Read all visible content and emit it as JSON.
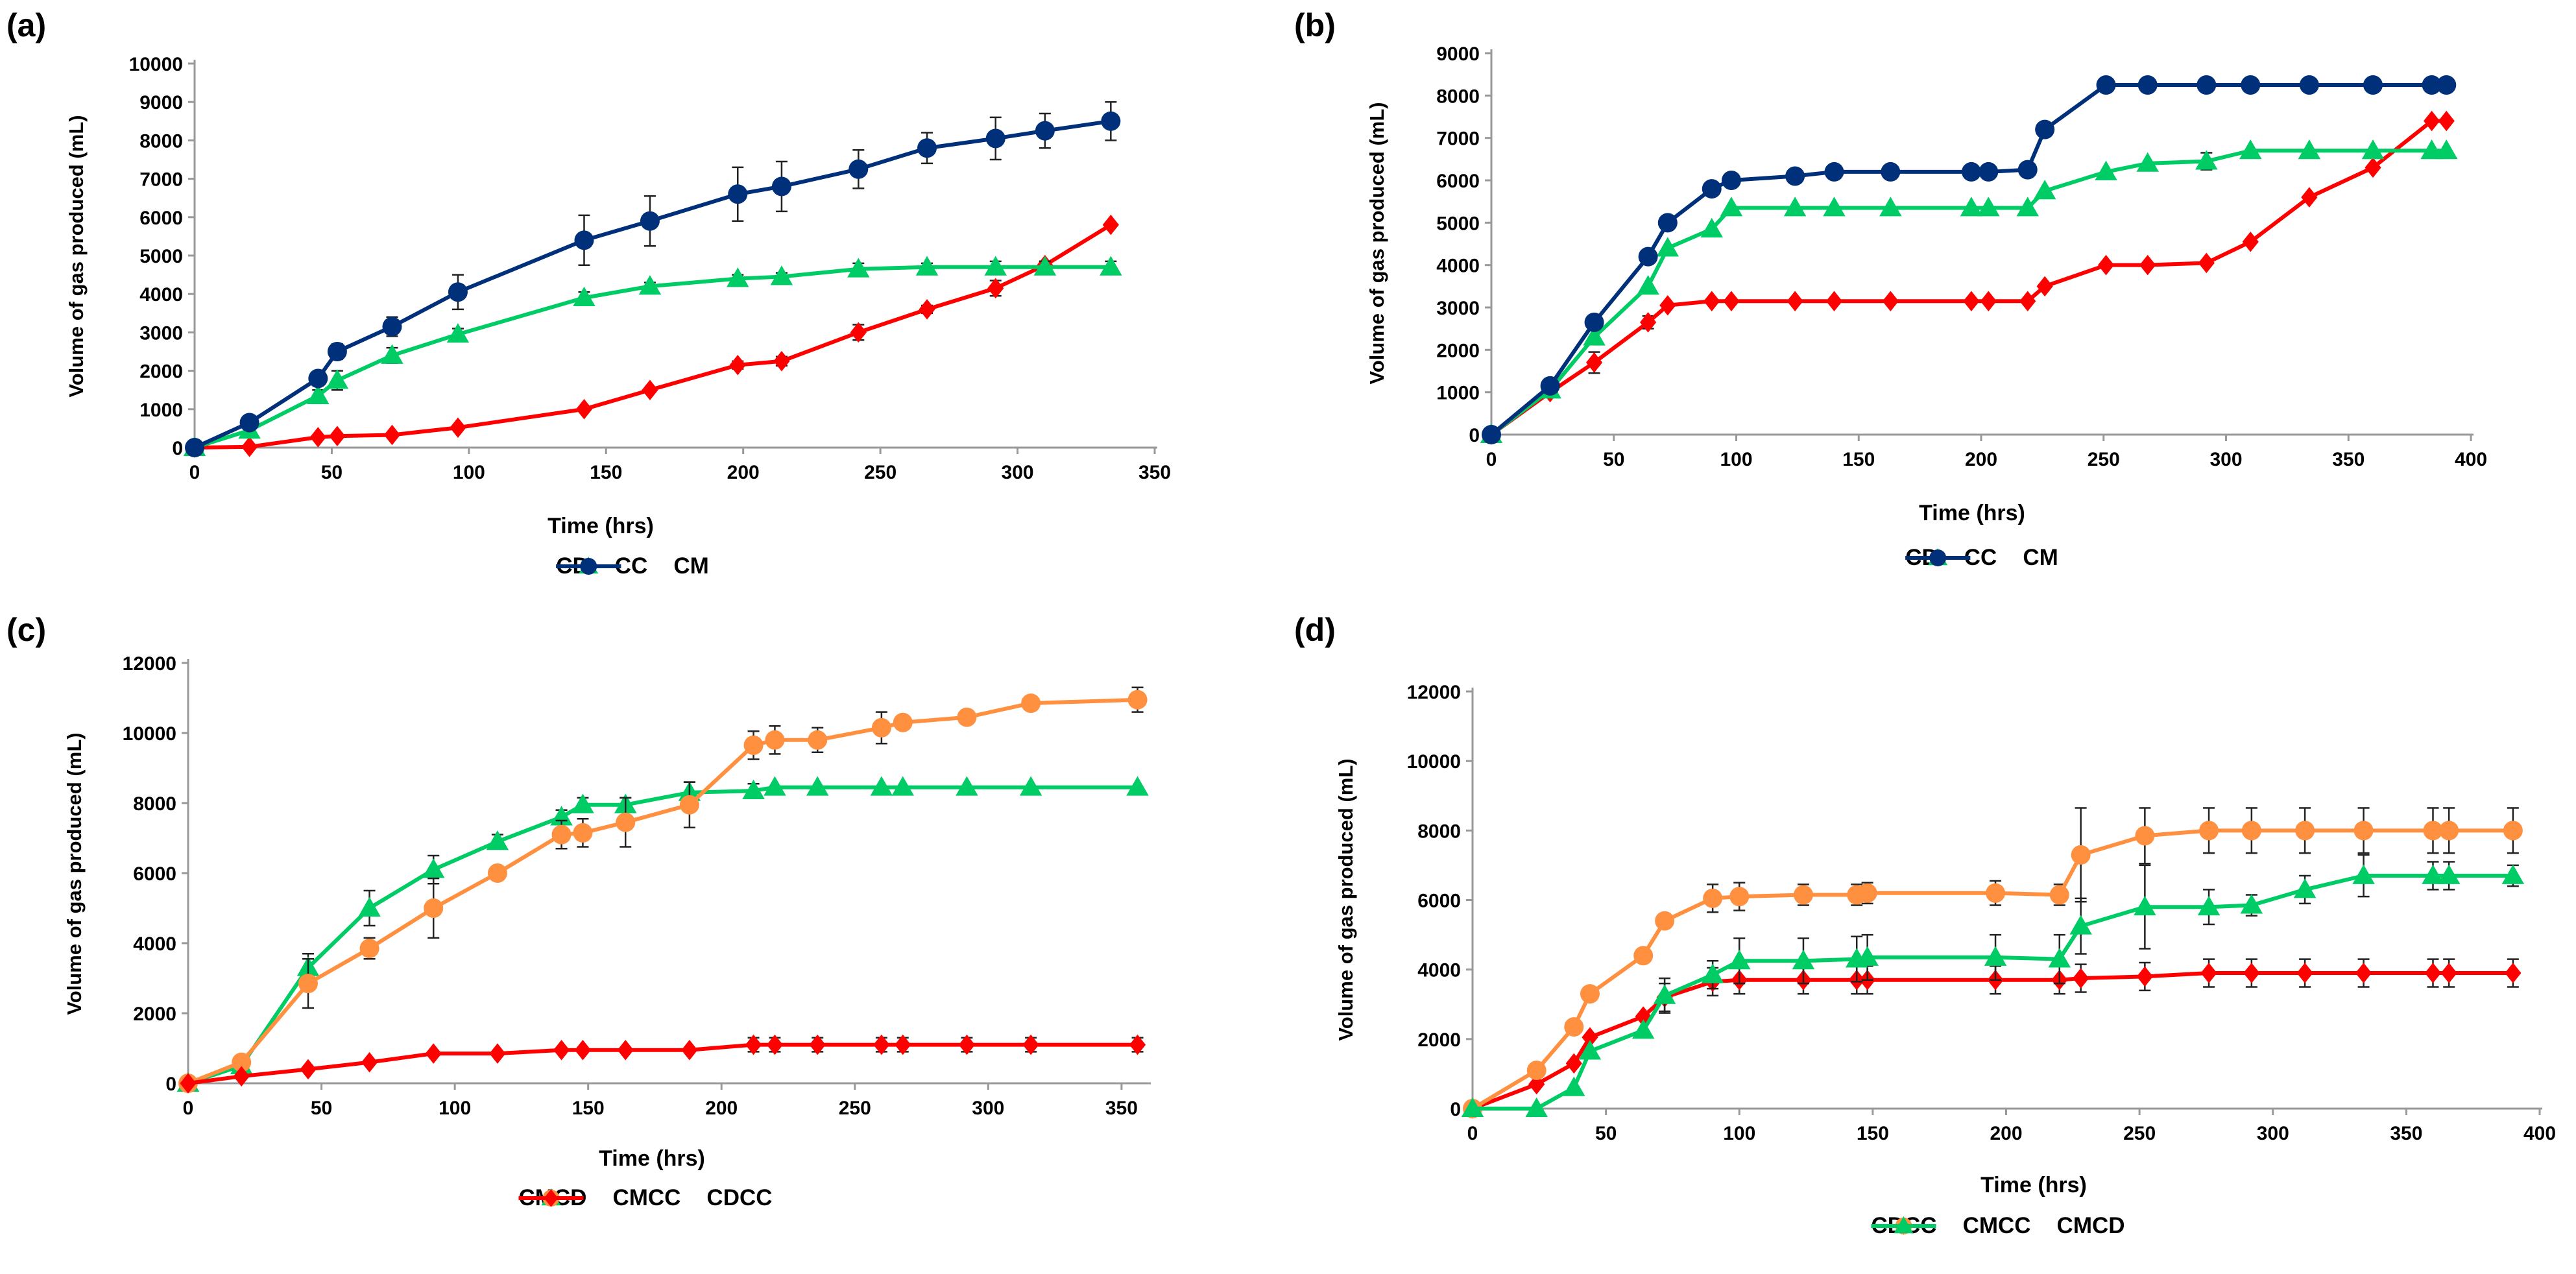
{
  "chart_data": [
    {
      "type": "line",
      "label": "(a)",
      "xlabel": "Time (hrs)",
      "ylabel": "Volume of gas produced (mL)",
      "xlim": [
        0,
        350
      ],
      "xticks": [
        0,
        50,
        100,
        150,
        200,
        250,
        300,
        350
      ],
      "ylim": [
        0,
        10000
      ],
      "yticks": [
        0,
        1000,
        2000,
        3000,
        4000,
        5000,
        6000,
        7000,
        8000,
        9000,
        10000
      ],
      "legend_position": "bottom",
      "series": [
        {
          "name": "CD",
          "color": "#ff0000",
          "marker": "diamond",
          "x": [
            0,
            20,
            45,
            52,
            72,
            96,
            142,
            166,
            198,
            214,
            242,
            267,
            292,
            310,
            334
          ],
          "y": [
            0,
            20,
            270,
            300,
            330,
            520,
            1000,
            1500,
            2150,
            2250,
            3000,
            3600,
            4150,
            4750,
            5800
          ],
          "err": [
            0,
            0,
            0,
            0,
            0,
            0,
            0,
            0,
            100,
            120,
            200,
            100,
            200,
            100,
            50
          ]
        },
        {
          "name": "CC",
          "color": "#00cc66",
          "marker": "triangle",
          "x": [
            0,
            20,
            45,
            52,
            72,
            96,
            142,
            166,
            198,
            214,
            242,
            267,
            292,
            310,
            334
          ],
          "y": [
            0,
            450,
            1350,
            1750,
            2400,
            2950,
            3900,
            4200,
            4400,
            4450,
            4650,
            4700,
            4700,
            4700,
            4700
          ],
          "err": [
            0,
            0,
            150,
            250,
            200,
            150,
            150,
            100,
            100,
            100,
            150,
            100,
            150,
            150,
            150
          ]
        },
        {
          "name": "CM",
          "color": "#00307a",
          "marker": "circle",
          "x": [
            0,
            20,
            45,
            52,
            72,
            96,
            142,
            166,
            198,
            214,
            242,
            267,
            292,
            310,
            334
          ],
          "y": [
            0,
            650,
            1800,
            2500,
            3150,
            4050,
            5400,
            5900,
            6600,
            6800,
            7250,
            7800,
            8050,
            8250,
            8500
          ],
          "err": [
            0,
            0,
            150,
            200,
            250,
            450,
            650,
            650,
            700,
            650,
            500,
            400,
            550,
            450,
            500
          ]
        }
      ]
    },
    {
      "type": "line",
      "label": "(b)",
      "xlabel": "Time (hrs)",
      "ylabel": "Volume of gas produced (mL)",
      "xlim": [
        0,
        400
      ],
      "xticks": [
        0,
        50,
        100,
        150,
        200,
        250,
        300,
        350,
        400
      ],
      "ylim": [
        0,
        9000
      ],
      "yticks": [
        0,
        1000,
        2000,
        3000,
        4000,
        5000,
        6000,
        7000,
        8000,
        9000
      ],
      "legend_position": "bottom",
      "series": [
        {
          "name": "CD",
          "color": "#ff0000",
          "marker": "diamond",
          "x": [
            0,
            24,
            42,
            64,
            72,
            90,
            98,
            124,
            140,
            163,
            196,
            203,
            219,
            226,
            251,
            268,
            292,
            310,
            334,
            360,
            384,
            390
          ],
          "y": [
            0,
            1000,
            1700,
            2650,
            3050,
            3150,
            3150,
            3150,
            3150,
            3150,
            3150,
            3150,
            3150,
            3500,
            4000,
            4000,
            4050,
            4550,
            5600,
            6300,
            7400,
            7400
          ],
          "err": [
            0,
            0,
            250,
            150,
            0,
            0,
            0,
            0,
            0,
            0,
            0,
            0,
            0,
            0,
            0,
            0,
            0,
            0,
            0,
            0,
            0,
            0
          ]
        },
        {
          "name": "CC",
          "color": "#00cc66",
          "marker": "triangle",
          "x": [
            0,
            24,
            42,
            64,
            72,
            90,
            98,
            124,
            140,
            163,
            196,
            203,
            219,
            226,
            251,
            268,
            292,
            310,
            334,
            360,
            384,
            390
          ],
          "y": [
            0,
            1050,
            2300,
            3500,
            4400,
            4850,
            5350,
            5350,
            5350,
            5350,
            5350,
            5350,
            5350,
            5750,
            6200,
            6400,
            6450,
            6700,
            6700,
            6700,
            6700,
            6700
          ],
          "err": [
            0,
            0,
            0,
            0,
            0,
            0,
            0,
            0,
            0,
            0,
            0,
            0,
            0,
            0,
            0,
            0,
            200,
            0,
            0,
            0,
            0,
            0
          ]
        },
        {
          "name": "CM",
          "color": "#00307a",
          "marker": "circle",
          "x": [
            0,
            24,
            42,
            64,
            72,
            90,
            98,
            124,
            140,
            163,
            196,
            203,
            219,
            226,
            251,
            268,
            292,
            310,
            334,
            360,
            384,
            390
          ],
          "y": [
            0,
            1150,
            2650,
            4200,
            5000,
            5800,
            6000,
            6100,
            6200,
            6200,
            6200,
            6200,
            6250,
            7200,
            8250,
            8250,
            8250,
            8250,
            8250,
            8250,
            8250,
            8250
          ],
          "err": [
            0,
            0,
            0,
            0,
            0,
            0,
            0,
            0,
            0,
            0,
            0,
            0,
            0,
            0,
            0,
            0,
            0,
            0,
            0,
            0,
            0,
            0
          ]
        }
      ]
    },
    {
      "type": "line",
      "label": "(c)",
      "xlabel": "Time (hrs)",
      "ylabel": "Volume of gas produced (mL)",
      "xlim": [
        0,
        360
      ],
      "xticks": [
        0,
        50,
        100,
        150,
        200,
        250,
        300,
        350
      ],
      "ylim": [
        0,
        12000
      ],
      "yticks": [
        0,
        2000,
        4000,
        6000,
        8000,
        10000,
        12000
      ],
      "legend_position": "bottom",
      "series": [
        {
          "name": "CMCD",
          "color": "#00cc66",
          "marker": "triangle",
          "x": [
            0,
            20,
            45,
            68,
            92,
            116,
            140,
            148,
            164,
            188,
            212,
            220,
            236,
            260,
            268,
            292,
            316,
            356
          ],
          "y": [
            0,
            500,
            3300,
            5000,
            6100,
            6900,
            7600,
            7950,
            7950,
            8300,
            8350,
            8450,
            8450,
            8450,
            8450,
            8450,
            8450,
            8450
          ],
          "err": [
            0,
            0,
            400,
            500,
            400,
            200,
            200,
            200,
            200,
            300,
            200,
            0,
            0,
            0,
            0,
            0,
            0,
            0
          ]
        },
        {
          "name": "CMCC",
          "color": "#ff9040",
          "marker": "circle",
          "x": [
            0,
            20,
            45,
            68,
            92,
            116,
            140,
            148,
            164,
            188,
            212,
            220,
            236,
            260,
            268,
            292,
            316,
            356
          ],
          "y": [
            0,
            600,
            2850,
            3850,
            5000,
            6000,
            7100,
            7150,
            7450,
            7950,
            9650,
            9800,
            9800,
            10150,
            10300,
            10450,
            10850,
            10950
          ],
          "err": [
            0,
            0,
            700,
            300,
            850,
            200,
            400,
            400,
            700,
            650,
            400,
            400,
            350,
            450,
            0,
            0,
            0,
            350
          ]
        },
        {
          "name": "CDCC",
          "color": "#ff0000",
          "marker": "diamond",
          "x": [
            0,
            20,
            45,
            68,
            92,
            116,
            140,
            148,
            164,
            188,
            212,
            220,
            236,
            260,
            268,
            292,
            316,
            356
          ],
          "y": [
            0,
            200,
            400,
            600,
            850,
            850,
            950,
            950,
            950,
            950,
            1100,
            1100,
            1100,
            1100,
            1100,
            1100,
            1100,
            1100
          ],
          "err": [
            0,
            0,
            0,
            0,
            0,
            0,
            0,
            0,
            0,
            0,
            200,
            200,
            200,
            200,
            200,
            200,
            200,
            200
          ]
        }
      ]
    },
    {
      "type": "line",
      "label": "(d)",
      "xlabel": "Time (hrs)",
      "ylabel": "Volume of gas produced (mL)",
      "xlim": [
        0,
        400
      ],
      "xticks": [
        0,
        50,
        100,
        150,
        200,
        250,
        300,
        350,
        400
      ],
      "ylim": [
        0,
        12000
      ],
      "yticks": [
        0,
        2000,
        4000,
        6000,
        8000,
        10000,
        12000
      ],
      "legend_position": "bottom",
      "series": [
        {
          "name": "CDCC",
          "color": "#ff0000",
          "marker": "diamond",
          "x": [
            0,
            24,
            38,
            44,
            64,
            72,
            90,
            100,
            124,
            144,
            148,
            196,
            220,
            228,
            252,
            276,
            292,
            312,
            334,
            360,
            366,
            390
          ],
          "y": [
            0,
            700,
            1300,
            2050,
            2650,
            3200,
            3650,
            3700,
            3700,
            3700,
            3700,
            3700,
            3700,
            3750,
            3800,
            3900,
            3900,
            3900,
            3900,
            3900,
            3900,
            3900
          ],
          "err": [
            0,
            0,
            0,
            0,
            0,
            400,
            400,
            400,
            400,
            400,
            400,
            400,
            400,
            400,
            400,
            400,
            400,
            400,
            400,
            400,
            400,
            400
          ]
        },
        {
          "name": "CMCC",
          "color": "#ff9040",
          "marker": "circle",
          "x": [
            0,
            24,
            38,
            44,
            64,
            72,
            90,
            100,
            124,
            144,
            148,
            196,
            220,
            228,
            252,
            276,
            292,
            312,
            334,
            360,
            366,
            390
          ],
          "y": [
            0,
            1100,
            2350,
            3300,
            4400,
            5400,
            6050,
            6100,
            6150,
            6150,
            6200,
            6200,
            6150,
            7300,
            7850,
            8000,
            8000,
            8000,
            8000,
            8000,
            8000,
            8000
          ],
          "err": [
            0,
            0,
            0,
            0,
            0,
            0,
            400,
            400,
            300,
            300,
            300,
            350,
            300,
            1350,
            800,
            650,
            650,
            650,
            650,
            650,
            650,
            650
          ]
        },
        {
          "name": "CMCD",
          "color": "#00cc66",
          "marker": "triangle",
          "x": [
            0,
            24,
            38,
            44,
            64,
            72,
            90,
            100,
            124,
            144,
            148,
            196,
            220,
            228,
            252,
            276,
            292,
            312,
            334,
            360,
            366,
            390
          ],
          "y": [
            0,
            0,
            600,
            1650,
            2250,
            3250,
            3850,
            4250,
            4250,
            4300,
            4350,
            4350,
            4300,
            5250,
            5800,
            5800,
            5850,
            6300,
            6700,
            6700,
            6700,
            6700
          ],
          "err": [
            0,
            0,
            0,
            0,
            0,
            500,
            400,
            650,
            650,
            650,
            650,
            650,
            700,
            800,
            1200,
            500,
            300,
            400,
            600,
            400,
            400,
            300
          ]
        }
      ]
    }
  ]
}
